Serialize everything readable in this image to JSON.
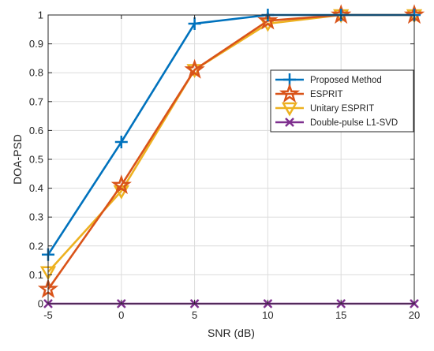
{
  "chart_data": {
    "type": "line",
    "title": "",
    "xlabel": "SNR (dB)",
    "ylabel": "DOA-PSD",
    "x": [
      -5,
      0,
      5,
      10,
      15,
      20
    ],
    "xlim": [
      -5,
      20
    ],
    "ylim": [
      0,
      1
    ],
    "xticks": [
      "-5",
      "0",
      "5",
      "10",
      "15",
      "20"
    ],
    "yticks": [
      "0",
      "0.1",
      "0.2",
      "0.3",
      "0.4",
      "0.5",
      "0.6",
      "0.7",
      "0.8",
      "0.9",
      "1"
    ],
    "grid": true,
    "legend_position": "right",
    "series": [
      {
        "name": "Proposed Method",
        "values": [
          0.17,
          0.56,
          0.97,
          1.0,
          1.0,
          1.0
        ],
        "color": "#0072BD",
        "marker": "plus"
      },
      {
        "name": "ESPRIT",
        "values": [
          0.05,
          0.41,
          0.81,
          0.98,
          1.0,
          1.0
        ],
        "color": "#D95319",
        "marker": "star"
      },
      {
        "name": "Unitary ESPRIT",
        "values": [
          0.11,
          0.39,
          0.81,
          0.97,
          1.0,
          1.0
        ],
        "color": "#EDB120",
        "marker": "triangle-down"
      },
      {
        "name": "Double-pulse L1-SVD",
        "values": [
          0,
          0,
          0,
          0,
          0,
          0
        ],
        "color": "#7E2F8E",
        "marker": "x"
      }
    ]
  }
}
